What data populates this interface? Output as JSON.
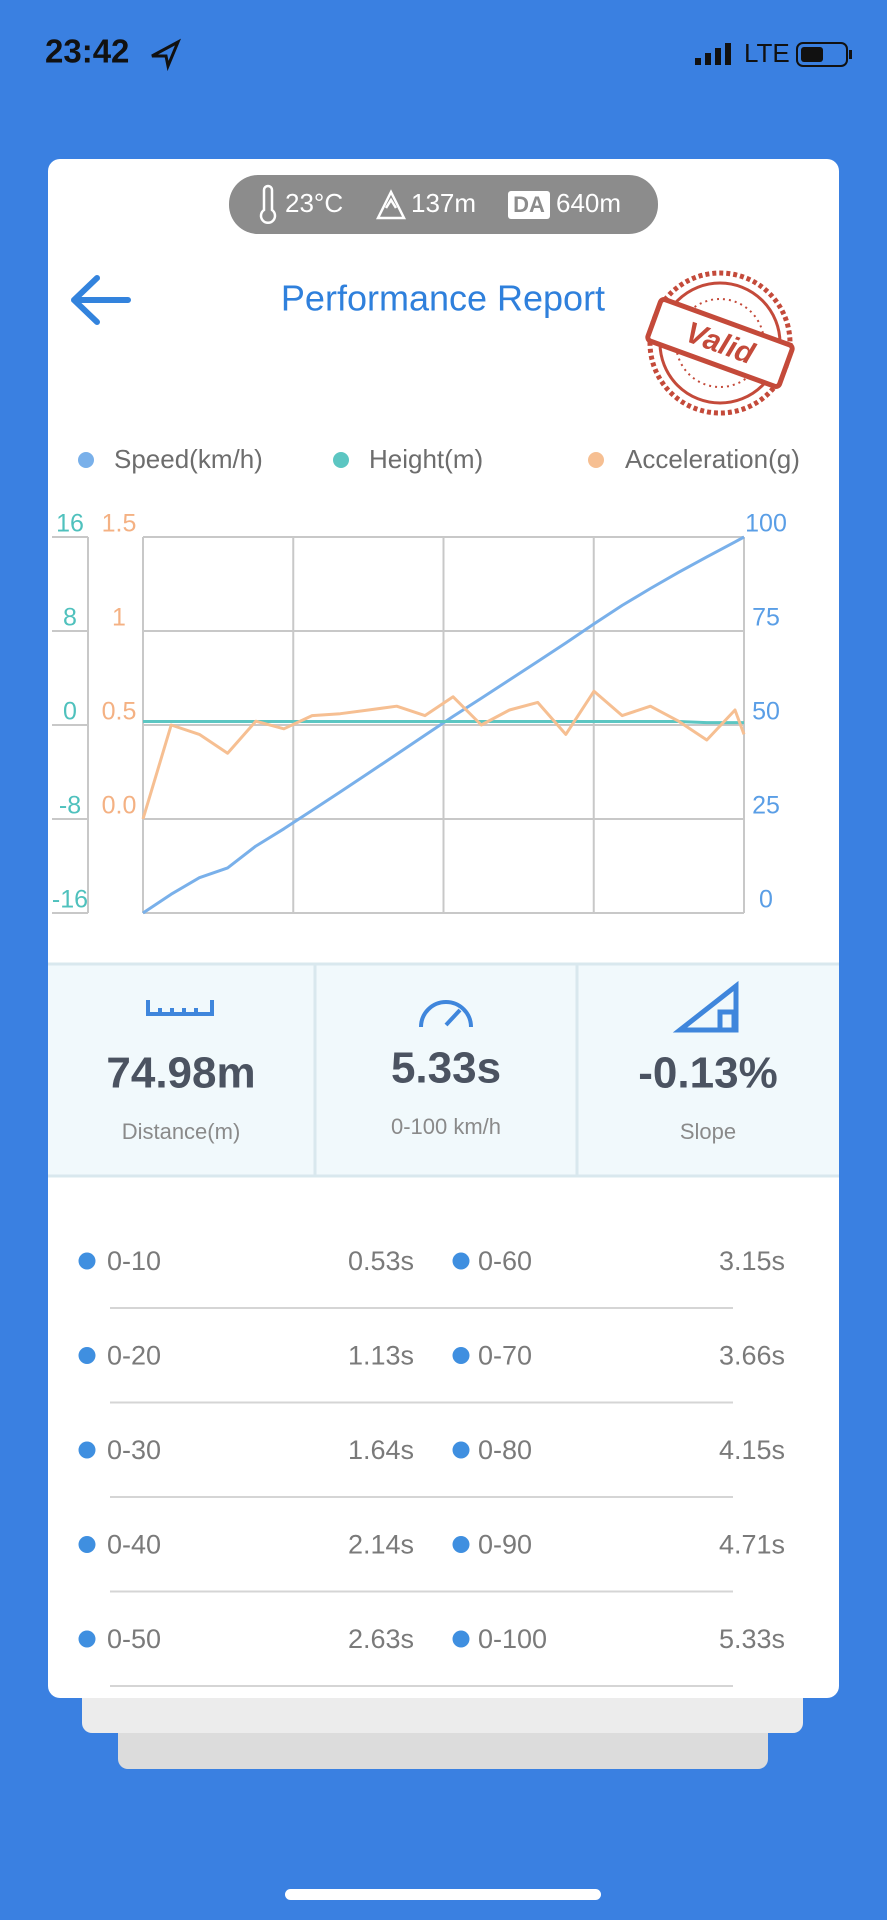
{
  "status_bar": {
    "time": "23:42",
    "network": "LTE"
  },
  "conditions": {
    "temperature": "23°C",
    "altitude": "137m",
    "da_label": "DA",
    "density_altitude": "640m"
  },
  "header": {
    "title": "Performance Report",
    "stamp": "Valid"
  },
  "chart_data": {
    "type": "line",
    "x": [
      0,
      0.25,
      0.5,
      0.75,
      1,
      1.25,
      1.5,
      1.75,
      2,
      2.25,
      2.5,
      2.75,
      3,
      3.25,
      3.5,
      3.75,
      4,
      4.25,
      4.5,
      4.75,
      5,
      5.25,
      5.33
    ],
    "xlim": [
      0,
      5.33
    ],
    "axes": [
      {
        "id": "height",
        "color": "#4fc1bd",
        "lim": [
          -16,
          16
        ],
        "ticks": [
          -16,
          -8,
          0,
          8,
          16
        ]
      },
      {
        "id": "acceleration",
        "color": "#f4b183",
        "lim": [
          -0.5,
          1.5
        ],
        "ticks": [
          {
            "value": 0,
            "label": "0.0"
          },
          0.5,
          1,
          1.5
        ]
      },
      {
        "id": "speed",
        "color": "#5a9ee6",
        "lim": [
          0,
          100
        ],
        "ticks": [
          0,
          25,
          50,
          75,
          100
        ]
      }
    ],
    "grid": true,
    "series": [
      {
        "name": "Speed(km/h)",
        "color": "#79b0ea",
        "axis": "speed",
        "values": [
          0,
          5,
          9.4,
          12,
          17.8,
          22.4,
          27.3,
          32.2,
          37.2,
          42.2,
          47.3,
          52.3,
          57.1,
          62,
          66.9,
          71.8,
          76.9,
          81.8,
          86.3,
          90.6,
          94.7,
          98.7,
          100
        ]
      },
      {
        "name": "Height(m)",
        "color": "#5cc6c2",
        "axis": "height",
        "values": [
          0.3,
          0.3,
          0.3,
          0.3,
          0.3,
          0.3,
          0.3,
          0.3,
          0.3,
          0.3,
          0.3,
          0.3,
          0.3,
          0.3,
          0.3,
          0.3,
          0.3,
          0.3,
          0.3,
          0.3,
          0.2,
          0.2,
          0.2
        ]
      },
      {
        "name": "Acceleration(g)",
        "color": "#f6bf92",
        "axis": "acceleration",
        "values": [
          0,
          0.5,
          0.45,
          0.35,
          0.52,
          0.48,
          0.55,
          0.56,
          0.58,
          0.6,
          0.55,
          0.65,
          0.5,
          0.58,
          0.62,
          0.45,
          0.68,
          0.55,
          0.6,
          0.52,
          0.42,
          0.58,
          0.45
        ]
      }
    ]
  },
  "stats": [
    {
      "value": "74.98m",
      "label": "Distance(m)"
    },
    {
      "value": "5.33s",
      "label": "0-100 km/h"
    },
    {
      "value": "-0.13%",
      "label": "Slope"
    }
  ],
  "splits": [
    [
      {
        "range": "0-10",
        "time": "0.53s"
      },
      {
        "range": "0-60",
        "time": "3.15s"
      }
    ],
    [
      {
        "range": "0-20",
        "time": "1.13s"
      },
      {
        "range": "0-70",
        "time": "3.66s"
      }
    ],
    [
      {
        "range": "0-30",
        "time": "1.64s"
      },
      {
        "range": "0-80",
        "time": "4.15s"
      }
    ],
    [
      {
        "range": "0-40",
        "time": "2.14s"
      },
      {
        "range": "0-90",
        "time": "4.71s"
      }
    ],
    [
      {
        "range": "0-50",
        "time": "2.63s"
      },
      {
        "range": "0-100",
        "time": "5.33s"
      }
    ]
  ]
}
